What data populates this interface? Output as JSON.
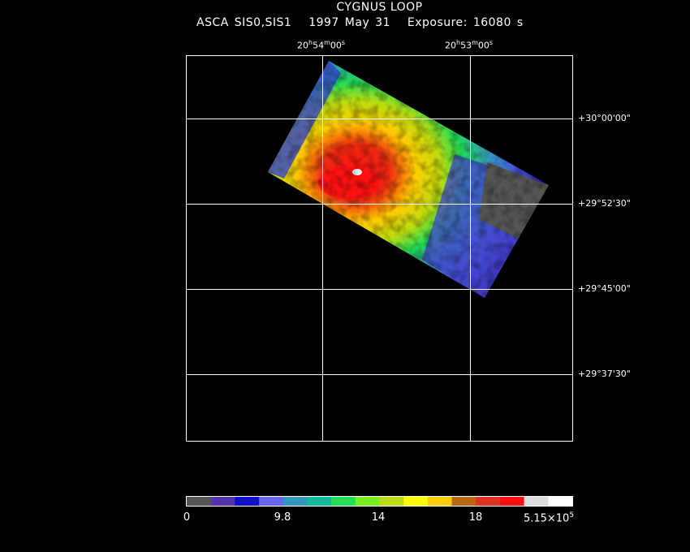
{
  "header": {
    "title": "CYGNUS LOOP",
    "instrument": "ASCA SIS0,SIS1",
    "date": "1997 May 31",
    "exposure": "Exposure: 16080 s"
  },
  "ra_labels": [
    {
      "h": "20",
      "m": "54",
      "s": "00"
    },
    {
      "h": "53",
      "m": "00",
      "s": "00"
    }
  ],
  "dec_labels": [
    "+30°00'00\"",
    "+29°52'30\"",
    "+29°45'00\"",
    "+29°37'30\""
  ],
  "colorbar": {
    "colors": [
      "#555555",
      "#5533aa",
      "#1111cc",
      "#6666ee",
      "#3399bb",
      "#11bb99",
      "#22dd55",
      "#77ee22",
      "#bbdd11",
      "#ffff00",
      "#ffcc00",
      "#bb6611",
      "#dd3322",
      "#ff1111",
      "#dddddd",
      "#ffffff"
    ],
    "labels": [
      "0",
      "9.8",
      "14",
      "18",
      "5.15×10"
    ],
    "last_exponent": "5"
  }
}
